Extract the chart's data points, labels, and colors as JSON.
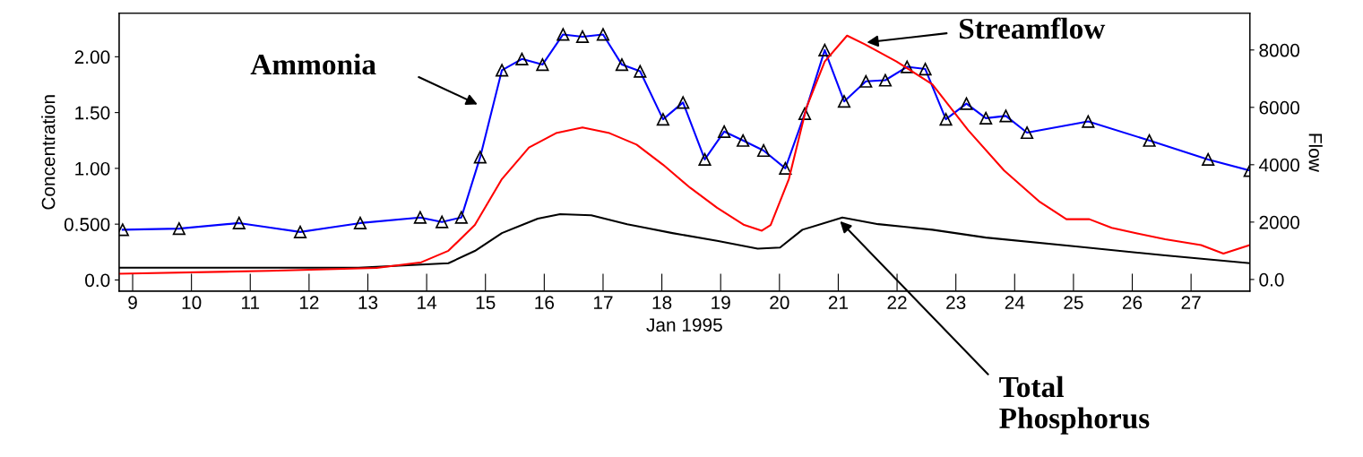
{
  "chart_data": {
    "type": "line",
    "xlabel": "Jan 1995",
    "ylabel": "Concentration",
    "y2label": "Flow",
    "xlim": [
      8.77,
      28.0
    ],
    "xticks": [
      9,
      10,
      11,
      12,
      13,
      14,
      15,
      16,
      17,
      18,
      19,
      20,
      21,
      22,
      23,
      24,
      25,
      26,
      27
    ],
    "ylim": [
      -0.1,
      2.39
    ],
    "yticks": [
      {
        "value": 0,
        "label": "0.0"
      },
      {
        "value": 0.5,
        "label": "0.500"
      },
      {
        "value": 1,
        "label": "1.00"
      },
      {
        "value": 1.5,
        "label": "1.50"
      },
      {
        "value": 2,
        "label": "2.00"
      }
    ],
    "y2lim": [
      -406,
      9280
    ],
    "y2ticks": [
      {
        "value": 0,
        "label": "0.0"
      },
      2000,
      4000,
      6000,
      8000
    ],
    "grid": false,
    "legend": false,
    "series": [
      {
        "color": "#0000ff",
        "marker": "triangle",
        "x": [
          8.83,
          9.79,
          10.81,
          11.85,
          12.87,
          13.89,
          14.26,
          14.59,
          14.91,
          15.28,
          15.62,
          15.97,
          16.32,
          16.65,
          17.0,
          17.32,
          17.63,
          18.02,
          18.36,
          18.73,
          19.06,
          19.38,
          19.73,
          20.1,
          20.43,
          20.77,
          21.1,
          21.47,
          21.8,
          22.17,
          22.48,
          22.83,
          23.18,
          23.51,
          23.85,
          24.21,
          25.25,
          26.29,
          27.29,
          28.0
        ],
        "values": [
          0.45,
          0.46,
          0.51,
          0.43,
          0.51,
          0.56,
          0.52,
          0.56,
          1.1,
          1.88,
          1.98,
          1.93,
          2.2,
          2.18,
          2.2,
          1.93,
          1.87,
          1.44,
          1.59,
          1.08,
          1.33,
          1.25,
          1.16,
          1.0,
          1.49,
          2.06,
          1.6,
          1.78,
          1.79,
          1.91,
          1.89,
          1.44,
          1.58,
          1.45,
          1.47,
          1.32,
          1.42,
          1.25,
          1.08,
          0.98
        ]
      },
      {
        "color": "#ff0000",
        "axis": "y2",
        "marker": "none",
        "x": [
          8.77,
          11.32,
          13.15,
          13.91,
          14.37,
          14.82,
          15.28,
          15.74,
          16.2,
          16.65,
          17.11,
          17.57,
          18.02,
          18.48,
          18.94,
          19.4,
          19.7,
          19.85,
          20.16,
          20.46,
          20.77,
          21.15,
          21.45,
          21.99,
          22.6,
          23.21,
          23.82,
          24.43,
          24.88,
          25.27,
          25.65,
          26.1,
          26.56,
          27.17,
          27.55,
          28.0
        ],
        "values": [
          200,
          300,
          400,
          600,
          1000,
          1900,
          3500,
          4600,
          5100,
          5300,
          5100,
          4700,
          4000,
          3200,
          2500,
          1900,
          1700,
          1900,
          3500,
          6000,
          7600,
          8500,
          8200,
          7600,
          6800,
          5200,
          3800,
          2700,
          2100,
          2100,
          1800,
          1600,
          1400,
          1200,
          900,
          1200
        ]
      },
      {
        "color": "#000000",
        "marker": "none",
        "x": [
          8.77,
          12.84,
          14.37,
          14.82,
          15.28,
          15.89,
          16.27,
          16.8,
          17.41,
          18.18,
          18.94,
          19.63,
          20.01,
          20.39,
          21.07,
          21.68,
          22.6,
          23.51,
          25.04,
          26.56,
          28.0
        ],
        "values": [
          0.11,
          0.11,
          0.15,
          0.26,
          0.42,
          0.55,
          0.59,
          0.58,
          0.5,
          0.42,
          0.35,
          0.28,
          0.29,
          0.45,
          0.56,
          0.5,
          0.45,
          0.38,
          0.3,
          0.22,
          0.15
        ]
      }
    ],
    "annotations": [
      "Ammonia",
      "Streamflow",
      "Total\nPhosphorus"
    ]
  }
}
